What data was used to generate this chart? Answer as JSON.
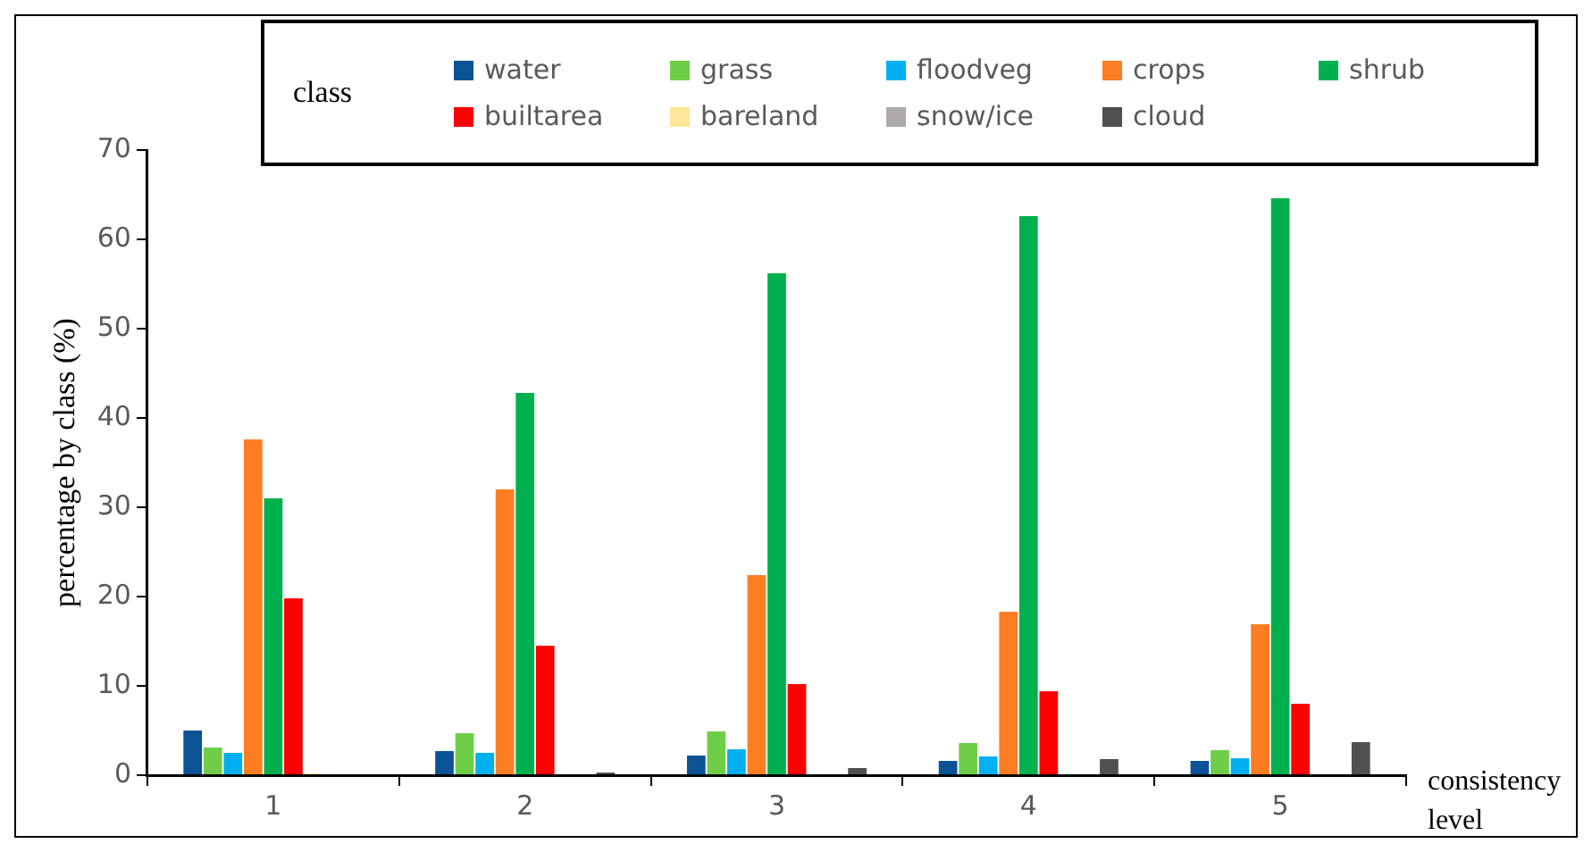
{
  "chart_data": {
    "type": "bar",
    "xlabel": "consistency level",
    "ylabel": "percentage by class (%)",
    "legend_title": "class",
    "legend": "top",
    "grid": false,
    "categories": [
      "1",
      "2",
      "3",
      "4",
      "5"
    ],
    "ylim": [
      0,
      70
    ],
    "yticks": [
      0,
      10,
      20,
      30,
      40,
      50,
      60,
      70
    ],
    "series": [
      {
        "name": "water",
        "color": "#0b5394",
        "values": [
          5,
          2.7,
          2.2,
          1.6,
          1.6
        ]
      },
      {
        "name": "grass",
        "color": "#6fce48",
        "values": [
          3.1,
          4.7,
          4.9,
          3.6,
          2.8
        ]
      },
      {
        "name": "floodveg",
        "color": "#00b0f0",
        "values": [
          2.5,
          2.5,
          2.9,
          2.1,
          1.9
        ]
      },
      {
        "name": "crops",
        "color": "#fd7e22",
        "values": [
          37.6,
          32,
          22.4,
          18.3,
          16.9
        ]
      },
      {
        "name": "shrub",
        "color": "#00b04e",
        "values": [
          31,
          42.8,
          56.2,
          62.6,
          64.6
        ]
      },
      {
        "name": "builtarea",
        "color": "#ff0000",
        "values": [
          19.8,
          14.5,
          10.2,
          9.4,
          8
        ]
      },
      {
        "name": "bareland",
        "color": "#ffe699",
        "values": [
          0.2,
          0,
          0,
          0,
          0
        ]
      },
      {
        "name": "snow/ice",
        "color": "#aeaaaa",
        "values": [
          0,
          0,
          0,
          0,
          0
        ]
      },
      {
        "name": "cloud",
        "color": "#505050",
        "values": [
          0,
          0.3,
          0.8,
          1.8,
          3.7
        ]
      }
    ]
  }
}
